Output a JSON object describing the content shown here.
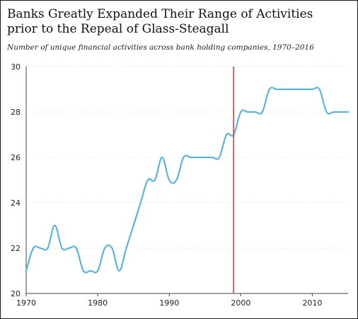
{
  "chart_data": {
    "type": "line",
    "title": "Banks Greatly Expanded Their Range of Activities prior to the Repeal of Glass-Steagall",
    "subtitle": "Number of unique financial activities across bank holding companies, 1970–2016",
    "xlabel": "",
    "ylabel": "",
    "xlim": [
      1970,
      2015
    ],
    "ylim": [
      20,
      30
    ],
    "x_ticks": [
      1970,
      1980,
      1990,
      2000,
      2010
    ],
    "y_ticks": [
      20,
      22,
      24,
      26,
      28,
      30
    ],
    "x_tick_labels": [
      "1970",
      "1980",
      "1990",
      "2000",
      "2010"
    ],
    "y_tick_labels": [
      "20",
      "22",
      "24",
      "26",
      "28",
      "30"
    ],
    "grid": "horizontal",
    "line_color": "#5ab4dc",
    "marker_line": {
      "x": 1999,
      "color": "#e0302a"
    },
    "series": [
      {
        "x": [
          1970,
          1971,
          1972,
          1973,
          1974,
          1975,
          1976,
          1977,
          1978,
          1979,
          1980,
          1981,
          1982,
          1983,
          1984,
          1985,
          1986,
          1987,
          1988,
          1989,
          1990,
          1991,
          1992,
          1993,
          1994,
          1995,
          1996,
          1997,
          1998,
          1999,
          2000,
          2001,
          2002,
          2003,
          2004,
          2005,
          2006,
          2007,
          2008,
          2009,
          2010,
          2011,
          2012,
          2013,
          2014,
          2015
        ],
        "values": [
          21,
          22,
          22,
          22,
          23,
          22,
          22,
          22,
          21,
          21,
          21,
          22,
          22,
          21,
          22,
          23,
          24,
          25,
          25,
          26,
          25,
          25,
          26,
          26,
          26,
          26,
          26,
          26,
          27,
          27,
          28,
          28,
          28,
          28,
          29,
          29,
          29,
          29,
          29,
          29,
          29,
          29,
          28,
          28,
          28,
          28
        ]
      }
    ]
  }
}
